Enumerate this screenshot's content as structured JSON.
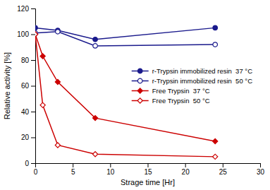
{
  "chart_data": {
    "type": "line",
    "xlabel": "Strage time [Hr]",
    "ylabel": "Relative activity [%]",
    "xlim": [
      0,
      30
    ],
    "ylim": [
      0,
      120
    ],
    "xticks": [
      0,
      5,
      10,
      15,
      20,
      25,
      30
    ],
    "yticks": [
      0,
      20,
      40,
      60,
      80,
      100,
      120
    ],
    "grid": false,
    "legend": "right",
    "series": [
      {
        "name": "r-Trypsin immobilized resin  37 °C",
        "color": "#1a1a8c",
        "marker": "circle",
        "x": [
          0,
          3,
          8,
          24
        ],
        "values": [
          105,
          103,
          96,
          105
        ]
      },
      {
        "name": "r-Trypsin immobilized resin  50 °C",
        "color": "#1a1a8c",
        "marker": "circle-open",
        "x": [
          0,
          3,
          8,
          24
        ],
        "values": [
          101,
          102,
          91,
          92
        ]
      },
      {
        "name": "Free Trypsin  37 °C",
        "color": "#cc0000",
        "marker": "diamond",
        "x": [
          0,
          1,
          3,
          8,
          24
        ],
        "values": [
          100,
          83,
          63,
          35,
          17
        ]
      },
      {
        "name": "Free Trypsin  50 °C",
        "color": "#cc0000",
        "marker": "diamond-open",
        "x": [
          0,
          1,
          3,
          8,
          24
        ],
        "values": [
          100,
          45,
          14,
          7,
          5
        ]
      }
    ]
  }
}
